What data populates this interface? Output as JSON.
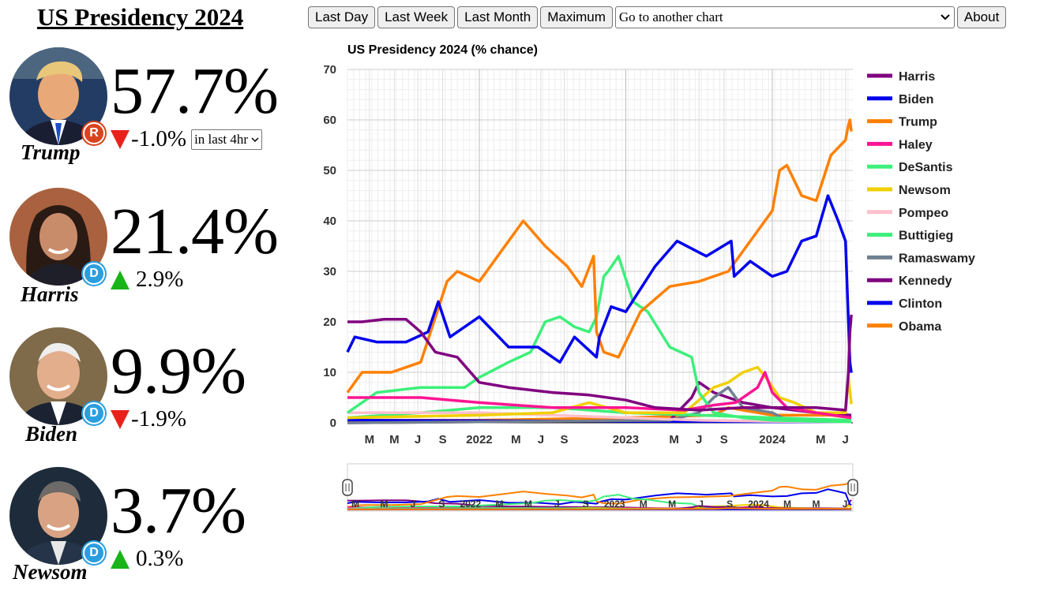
{
  "header": {
    "title": "US Presidency 2024"
  },
  "toolbar": {
    "last_day": "Last Day",
    "last_week": "Last Week",
    "last_month": "Last Month",
    "maximum": "Maximum",
    "chart_select": "Go to another chart",
    "about": "About"
  },
  "candidates": [
    {
      "name": "Trump",
      "pct": "57.7%",
      "change": "-1.0%",
      "direction": "down",
      "party": "R",
      "period": "in last 4hr"
    },
    {
      "name": "Harris",
      "pct": "21.4%",
      "change": "2.9%",
      "direction": "up",
      "party": "D"
    },
    {
      "name": "Biden",
      "pct": "9.9%",
      "change": "-1.9%",
      "direction": "down",
      "party": "D"
    },
    {
      "name": "Newsom",
      "pct": "3.7%",
      "change": "0.3%",
      "direction": "up",
      "party": "D"
    }
  ],
  "colors": {
    "republican": "#d9441c",
    "democrat": "#2a9fe0",
    "down": "#e8221a",
    "up": "#18b418"
  },
  "chart_data": {
    "type": "line",
    "title": "US Presidency 2024 (% chance)",
    "ylim": [
      0,
      70
    ],
    "yticks": [
      0,
      10,
      20,
      30,
      40,
      50,
      60,
      70
    ],
    "xlim": [
      2021.1,
      2024.55
    ],
    "xticks": [
      {
        "x": 2021.25,
        "label": "M"
      },
      {
        "x": 2021.42,
        "label": "M"
      },
      {
        "x": 2021.58,
        "label": "J"
      },
      {
        "x": 2021.75,
        "label": "S"
      },
      {
        "x": 2022.0,
        "label": "2022"
      },
      {
        "x": 2022.25,
        "label": "M"
      },
      {
        "x": 2022.42,
        "label": "J"
      },
      {
        "x": 2022.58,
        "label": "S"
      },
      {
        "x": 2023.0,
        "label": "2023"
      },
      {
        "x": 2023.33,
        "label": "M"
      },
      {
        "x": 2023.5,
        "label": "J"
      },
      {
        "x": 2023.67,
        "label": "S"
      },
      {
        "x": 2024.0,
        "label": "2024"
      },
      {
        "x": 2024.33,
        "label": "M"
      },
      {
        "x": 2024.5,
        "label": "J"
      }
    ],
    "navigator_labels": [
      "M",
      "M",
      "J",
      "S",
      "2022",
      "M",
      "M",
      "J",
      "S",
      "2023",
      "M",
      "M",
      "J",
      "S",
      "2024",
      "M",
      "M",
      "J"
    ],
    "grid": true,
    "legend_position": "right",
    "series": [
      {
        "name": "Harris",
        "color": "#800080",
        "x": [
          2021.1,
          2021.2,
          2021.35,
          2021.5,
          2021.6,
          2021.7,
          2021.85,
          2022.0,
          2022.2,
          2022.5,
          2022.75,
          2023.0,
          2023.2,
          2023.5,
          2023.8,
          2024.0,
          2024.3,
          2024.5,
          2024.52,
          2024.53,
          2024.54
        ],
        "y": [
          20,
          20,
          20.5,
          20.5,
          18,
          14,
          13,
          8,
          7,
          6,
          5.5,
          4.5,
          3,
          2.5,
          3,
          3,
          3,
          2.5,
          10,
          18,
          21.4
        ]
      },
      {
        "name": "Biden",
        "color": "#0000ee",
        "x": [
          2021.1,
          2021.15,
          2021.3,
          2021.5,
          2021.65,
          2021.72,
          2021.8,
          2022.0,
          2022.2,
          2022.4,
          2022.5,
          2022.55,
          2022.65,
          2022.8,
          2022.82,
          2022.9,
          2023.0,
          2023.2,
          2023.35,
          2023.55,
          2023.72,
          2023.74,
          2023.85,
          2024.0,
          2024.1,
          2024.2,
          2024.3,
          2024.38,
          2024.45,
          2024.5,
          2024.52,
          2024.53,
          2024.54
        ],
        "y": [
          14,
          17,
          16,
          16,
          18,
          24,
          17,
          21,
          15,
          15,
          13,
          12,
          17,
          13,
          17,
          23,
          22,
          31,
          36,
          33,
          36,
          29,
          32,
          29,
          30,
          36,
          37,
          45,
          40,
          36,
          20,
          12,
          9.9
        ]
      },
      {
        "name": "Trump",
        "color": "#ff8000",
        "x": [
          2021.1,
          2021.2,
          2021.4,
          2021.6,
          2021.78,
          2021.85,
          2022.0,
          2022.15,
          2022.3,
          2022.45,
          2022.6,
          2022.7,
          2022.78,
          2022.8,
          2022.85,
          2022.95,
          2023.1,
          2023.3,
          2023.5,
          2023.7,
          2023.85,
          2024.0,
          2024.05,
          2024.1,
          2024.2,
          2024.3,
          2024.4,
          2024.5,
          2024.52,
          2024.53,
          2024.54
        ],
        "y": [
          6,
          10,
          10,
          12,
          28,
          30,
          28,
          34,
          40,
          35,
          31,
          27,
          33,
          18,
          14,
          13,
          22,
          27,
          28,
          30,
          36,
          42,
          50,
          51,
          45,
          44,
          53,
          56,
          59,
          60,
          57.7
        ]
      },
      {
        "name": "Haley",
        "color": "#ff1493",
        "x": [
          2021.1,
          2021.3,
          2021.6,
          2022.0,
          2022.5,
          2023.0,
          2023.4,
          2023.6,
          2023.75,
          2023.9,
          2023.95,
          2024.0,
          2024.1,
          2024.3,
          2024.54
        ],
        "y": [
          5,
          5,
          5,
          4,
          3,
          3,
          2.5,
          3.5,
          4,
          7,
          10,
          6,
          3,
          2,
          1
        ]
      },
      {
        "name": "DeSantis",
        "color": "#3cf07a",
        "x": [
          2021.1,
          2021.3,
          2021.6,
          2021.75,
          2021.9,
          2022.0,
          2022.2,
          2022.35,
          2022.45,
          2022.55,
          2022.65,
          2022.75,
          2022.8,
          2022.85,
          2022.88,
          2022.95,
          2023.05,
          2023.15,
          2023.3,
          2023.45,
          2023.5,
          2023.6,
          2023.8,
          2024.0,
          2024.3,
          2024.54
        ],
        "y": [
          2,
          6,
          7,
          7,
          7,
          9,
          12,
          14,
          20,
          21,
          19,
          18,
          21,
          29,
          30,
          33,
          24,
          22,
          15,
          13,
          6,
          2,
          1,
          0.5,
          0.3,
          0.2
        ]
      },
      {
        "name": "Newsom",
        "color": "#f0d000",
        "x": [
          2021.1,
          2022.0,
          2022.5,
          2022.75,
          2023.0,
          2023.4,
          2023.6,
          2023.7,
          2023.8,
          2023.9,
          2023.98,
          2024.05,
          2024.15,
          2024.3,
          2024.5,
          2024.52,
          2024.54
        ],
        "y": [
          1,
          1.5,
          2,
          4,
          2,
          2,
          7,
          8,
          10,
          11,
          8,
          5,
          4,
          2,
          2,
          9,
          3.7
        ]
      },
      {
        "name": "Pompeo",
        "color": "#ffc0cb",
        "x": [
          2021.1,
          2021.6,
          2022.0,
          2022.5,
          2023.0,
          2023.5,
          2024.0,
          2024.54
        ],
        "y": [
          2,
          2,
          2,
          1.5,
          1,
          0.5,
          0.3,
          0.2
        ]
      },
      {
        "name": "Buttigieg",
        "color": "#3cf07a",
        "x": [
          2021.1,
          2021.6,
          2022.0,
          2022.5,
          2023.0,
          2023.5,
          2024.0,
          2024.54
        ],
        "y": [
          1,
          2,
          3,
          3,
          2,
          1.5,
          1,
          0.5
        ]
      },
      {
        "name": "Ramaswamy",
        "color": "#708090",
        "x": [
          2021.1,
          2023.3,
          2023.5,
          2023.6,
          2023.7,
          2023.8,
          2024.0,
          2024.1,
          2024.54
        ],
        "y": [
          0,
          0.5,
          2,
          5,
          7,
          3,
          2,
          0.5,
          0.2
        ]
      },
      {
        "name": "Kennedy",
        "color": "#800080",
        "x": [
          2021.1,
          2023.3,
          2023.45,
          2023.5,
          2023.6,
          2023.8,
          2024.0,
          2024.3,
          2024.54
        ],
        "y": [
          0,
          0.5,
          5,
          8,
          6,
          4,
          3,
          2,
          1.5
        ]
      },
      {
        "name": "Clinton",
        "color": "#0000ee",
        "x": [
          2021.1,
          2022.0,
          2023.0,
          2024.0,
          2024.54
        ],
        "y": [
          0.5,
          0.4,
          0.3,
          0.2,
          0.2
        ]
      },
      {
        "name": "Obama",
        "color": "#ff8000",
        "x": [
          2021.1,
          2022.0,
          2023.0,
          2023.6,
          2023.7,
          2023.9,
          2024.0,
          2024.2,
          2024.4,
          2024.54
        ],
        "y": [
          0.5,
          0.5,
          1,
          1.5,
          3,
          2,
          1.5,
          1.5,
          1.5,
          1
        ]
      }
    ]
  }
}
